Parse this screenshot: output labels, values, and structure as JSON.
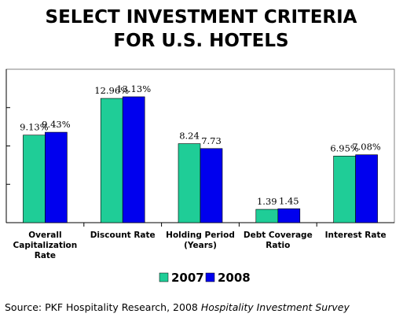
{
  "chart_data": {
    "type": "bar",
    "title_lines": [
      "SELECT INVESTMENT CRITERIA",
      "FOR U.S. HOTELS"
    ],
    "categories": [
      [
        "Overall",
        "Capitalization",
        "Rate"
      ],
      [
        "Discount Rate"
      ],
      [
        "Holding Period",
        "(Years)"
      ],
      [
        "Debt Coverage",
        "Ratio"
      ],
      [
        "Interest Rate"
      ]
    ],
    "series": [
      {
        "name": "2007",
        "color": "#1fcd97",
        "values": [
          9.13,
          12.96,
          8.24,
          1.39,
          6.95
        ],
        "labels": [
          "9.13%",
          "12.96%",
          "8.24",
          "1.39",
          "6.95%"
        ]
      },
      {
        "name": "2008",
        "color": "#0000ee",
        "values": [
          9.43,
          13.13,
          7.73,
          1.45,
          7.08
        ],
        "labels": [
          "9.43%",
          "13.13%",
          "7.73",
          "1.45",
          "7.08%"
        ]
      }
    ],
    "ylim": [
      0,
      16
    ],
    "y_gridlines": [
      4,
      8,
      12
    ],
    "grid": true,
    "legend_position": "bottom-center",
    "source": {
      "prefix": "Source: PKF Hospitality Research, 2008 ",
      "italic": "Hospitality Investment Survey"
    }
  }
}
